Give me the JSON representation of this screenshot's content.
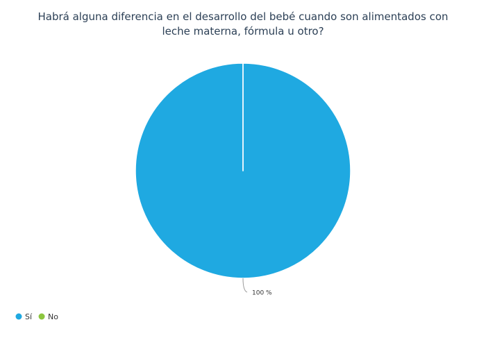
{
  "chart_data": {
    "type": "pie",
    "title": "Habrá alguna diferencia en el desarrollo del bebé cuando son alimentados con leche materna, fórmula u otro?",
    "categories": [
      "Sí",
      "No"
    ],
    "values": [
      100,
      0
    ],
    "value_labels": [
      "100 %",
      null
    ],
    "colors": [
      "#1fa9e1",
      "#8cc63f"
    ],
    "legend": "bottom-left"
  }
}
